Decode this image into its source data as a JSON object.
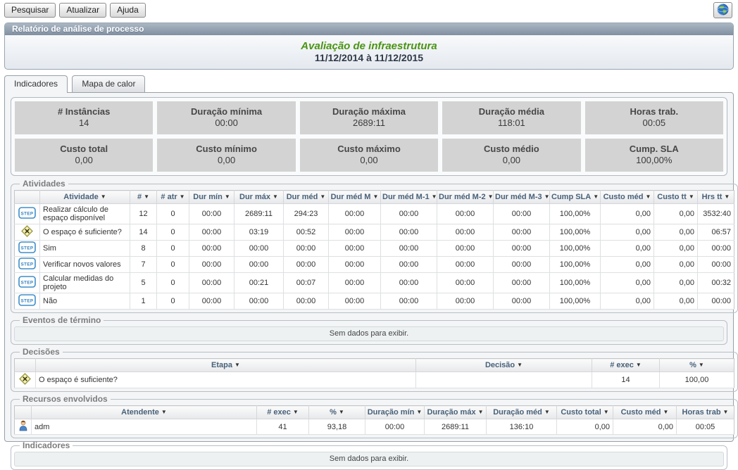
{
  "toolbar": {
    "buttons": [
      {
        "label": "Pesquisar"
      },
      {
        "label": "Atualizar"
      },
      {
        "label": "Ajuda"
      }
    ],
    "globe_icon": "globe-icon"
  },
  "report_panel": {
    "header": "Relatório de análise de processo",
    "title": "Avaliação de infraestrutura",
    "title_color": "#4a9413",
    "period": "11/12/2014 à 11/12/2015"
  },
  "tabs": [
    {
      "label": "Indicadores",
      "active": true
    },
    {
      "label": "Mapa de calor",
      "active": false
    }
  ],
  "kpis": [
    {
      "label": "# Instâncias",
      "value": "14"
    },
    {
      "label": "Duração mínima",
      "value": "00:00"
    },
    {
      "label": "Duração máxima",
      "value": "2689:11"
    },
    {
      "label": "Duração média",
      "value": "118:01"
    },
    {
      "label": "Horas trab.",
      "value": "00:05"
    },
    {
      "label": "Custo total",
      "value": "0,00"
    },
    {
      "label": "Custo mínimo",
      "value": "0,00"
    },
    {
      "label": "Custo máximo",
      "value": "0,00"
    },
    {
      "label": "Custo médio",
      "value": "0,00"
    },
    {
      "label": "Cump. SLA",
      "value": "100,00%"
    }
  ],
  "sections": {
    "atividades": {
      "legend": "Atividades",
      "columns": [
        "Atividade",
        "#",
        "# atr",
        "Dur mín",
        "Dur máx",
        "Dur méd",
        "Dur méd M",
        "Dur méd M-1",
        "Dur méd M-2",
        "Dur méd M-3",
        "Cump SLA",
        "Custo méd",
        "Custo tt",
        "Hrs tt"
      ],
      "rows": [
        {
          "icon": "step-icon",
          "cells": [
            "Realizar cálculo de espaço disponível",
            "12",
            "0",
            "00:00",
            "2689:11",
            "294:23",
            "00:00",
            "00:00",
            "00:00",
            "00:00",
            "100,00%",
            "0,00",
            "0,00",
            "3532:40"
          ]
        },
        {
          "icon": "decision-icon",
          "cells": [
            "O espaço é suficiente?",
            "14",
            "0",
            "00:00",
            "03:19",
            "00:52",
            "00:00",
            "00:00",
            "00:00",
            "00:00",
            "100,00%",
            "0,00",
            "0,00",
            "06:57"
          ]
        },
        {
          "icon": "step-icon",
          "cells": [
            "Sim",
            "8",
            "0",
            "00:00",
            "00:00",
            "00:00",
            "00:00",
            "00:00",
            "00:00",
            "00:00",
            "100,00%",
            "0,00",
            "0,00",
            "00:00"
          ]
        },
        {
          "icon": "step-icon",
          "cells": [
            "Verificar novos valores",
            "7",
            "0",
            "00:00",
            "00:00",
            "00:00",
            "00:00",
            "00:00",
            "00:00",
            "00:00",
            "100,00%",
            "0,00",
            "0,00",
            "00:00"
          ]
        },
        {
          "icon": "step-icon",
          "cells": [
            "Calcular medidas do projeto",
            "5",
            "0",
            "00:00",
            "00:21",
            "00:07",
            "00:00",
            "00:00",
            "00:00",
            "00:00",
            "100,00%",
            "0,00",
            "0,00",
            "00:32"
          ]
        },
        {
          "icon": "step-icon",
          "cells": [
            "Não",
            "1",
            "0",
            "00:00",
            "00:00",
            "00:00",
            "00:00",
            "00:00",
            "00:00",
            "00:00",
            "100,00%",
            "0,00",
            "0,00",
            "00:00"
          ]
        }
      ]
    },
    "eventos_termino": {
      "legend": "Eventos de término",
      "empty_message": "Sem dados para exibir."
    },
    "decisoes": {
      "legend": "Decisões",
      "columns": [
        "Etapa",
        "Decisão",
        "# exec",
        "%"
      ],
      "rows": [
        {
          "icon": "decision-icon",
          "cells": [
            "O espaço é suficiente?",
            "",
            "14",
            "100,00"
          ]
        }
      ]
    },
    "recursos": {
      "legend": "Recursos envolvidos",
      "columns": [
        "Atendente",
        "# exec",
        "%",
        "Duração mín",
        "Duração máx",
        "Duração méd",
        "Custo total",
        "Custo méd",
        "Horas trab"
      ],
      "rows": [
        {
          "icon": "person-icon",
          "cells": [
            "adm",
            "41",
            "93,18",
            "00:00",
            "2689:11",
            "136:10",
            "0,00",
            "0,00",
            "00:05"
          ]
        }
      ]
    },
    "indicadores": {
      "legend": "Indicadores",
      "empty_message": "Sem dados para exibir."
    }
  }
}
